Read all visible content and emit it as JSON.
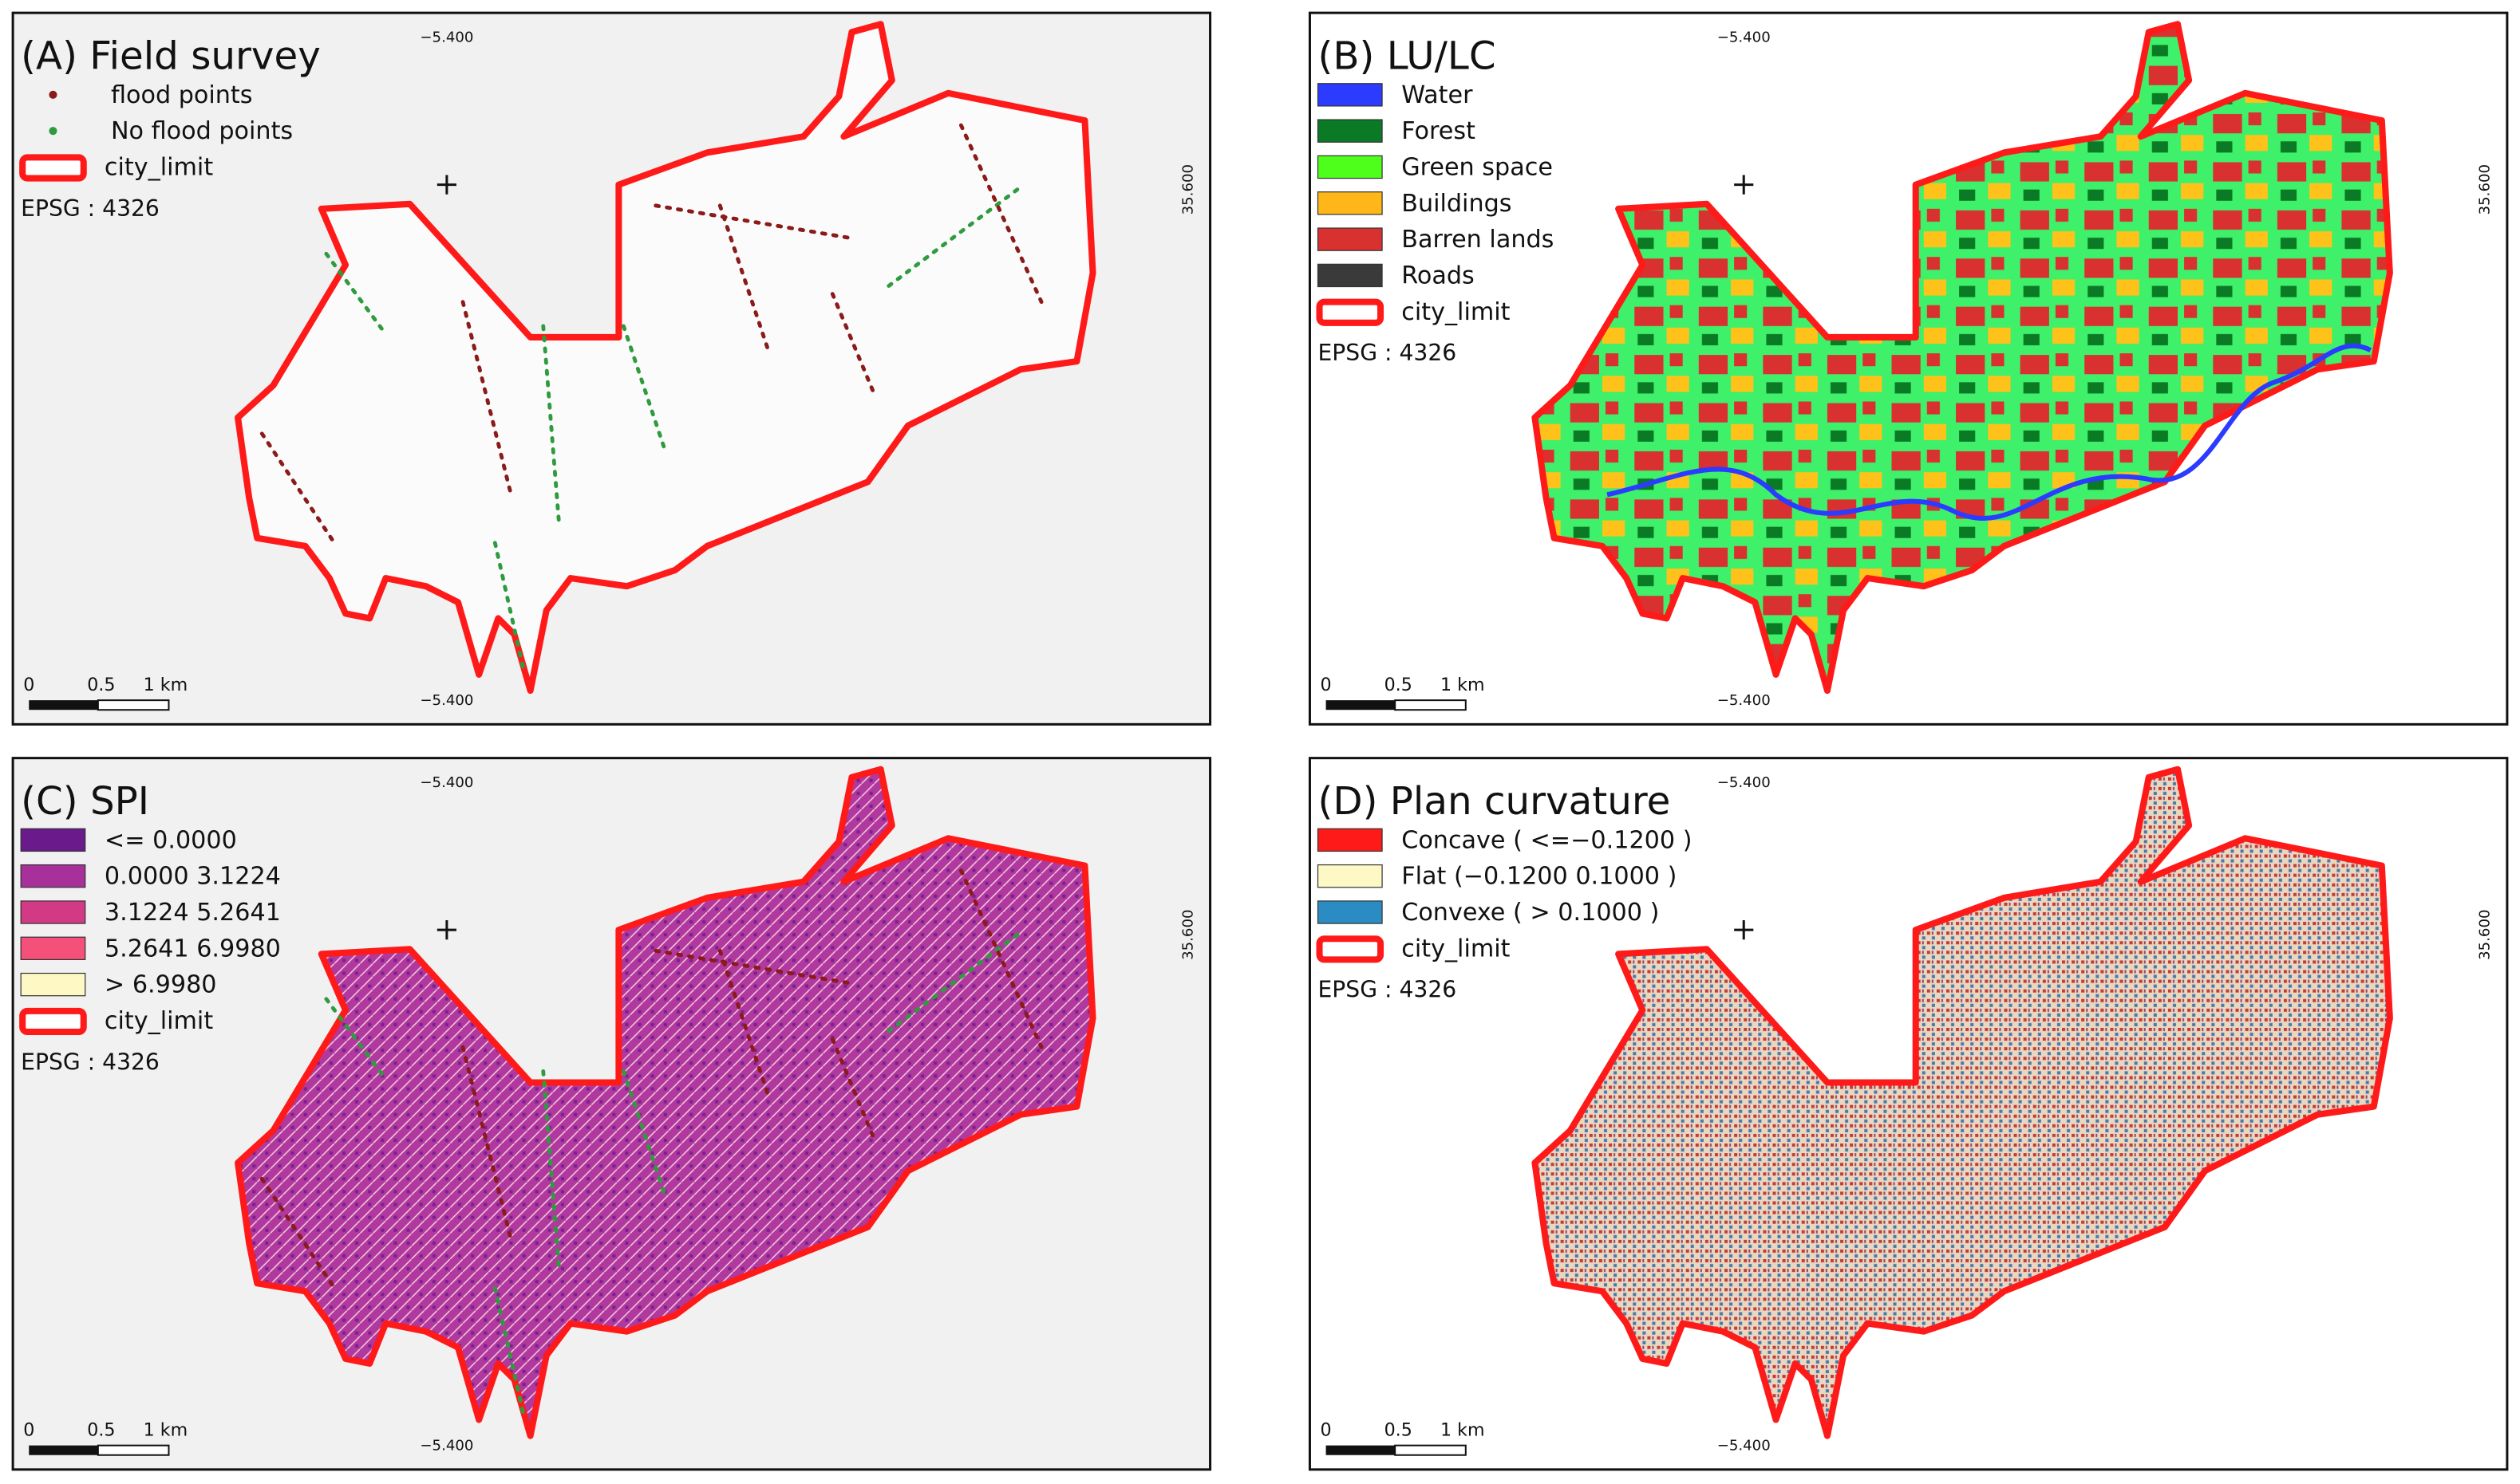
{
  "panels": [
    {
      "title": "(A) Field survey",
      "legend": [
        {
          "label": "flood points",
          "symbol": "point",
          "color": "#8b1a1a"
        },
        {
          "label": "No flood points",
          "symbol": "point",
          "color": "#2e9b3e"
        },
        {
          "label": "city_limit",
          "symbol": "outline",
          "color": "#ff1a1a"
        }
      ],
      "epsg": "EPSG : 4326",
      "scale": [
        "0",
        "0.5",
        "1 km"
      ],
      "top": "−5.400",
      "bottom": "−5.400",
      "right": "35.600"
    },
    {
      "title": "(B) LU/LC",
      "legend": [
        {
          "label": "Water",
          "symbol": "box",
          "color": "#2b3bff"
        },
        {
          "label": "Forest",
          "symbol": "box",
          "color": "#0a7a25"
        },
        {
          "label": "Green space",
          "symbol": "box",
          "color": "#4dff1a"
        },
        {
          "label": "Buildings",
          "symbol": "box",
          "color": "#ffb619"
        },
        {
          "label": "Barren lands",
          "symbol": "box",
          "color": "#d93030"
        },
        {
          "label": "Roads",
          "symbol": "box",
          "color": "#3a3a3a"
        },
        {
          "label": "city_limit",
          "symbol": "outline",
          "color": "#ff1a1a"
        }
      ],
      "epsg": "EPSG : 4326",
      "scale": [
        "0",
        "0.5",
        "1 km"
      ],
      "top": "−5.400",
      "bottom": "−5.400",
      "right": "35.600"
    },
    {
      "title": "(C) SPI",
      "legend": [
        {
          "label": "<=  0.0000",
          "symbol": "box",
          "color": "#6a1a8a"
        },
        {
          "label": " 0.0000   3.1224",
          "symbol": "box",
          "color": "#a8309a"
        },
        {
          "label": "3.1224   5.2641",
          "symbol": "box",
          "color": "#d23a86"
        },
        {
          "label": "5.2641   6.9980",
          "symbol": "box",
          "color": "#f4507a"
        },
        {
          "label": "> 6.9980",
          "symbol": "box",
          "color": "#fdf8c4"
        },
        {
          "label": "city_limit",
          "symbol": "outline",
          "color": "#ff1a1a"
        }
      ],
      "epsg": "EPSG : 4326",
      "scale": [
        "0",
        "0.5",
        "1 km"
      ],
      "top": "−5.400",
      "bottom": "−5.400",
      "right": "35.600"
    },
    {
      "title": "(D) Plan curvature",
      "legend": [
        {
          "label": "Concave ( <=−0.1200 )",
          "symbol": "box",
          "color": "#ff1a1a"
        },
        {
          "label": "Flat (−0.1200   0.1000 )",
          "symbol": "box",
          "color": "#fdf8c4"
        },
        {
          "label": "Convexe ( > 0.1000 )",
          "symbol": "box",
          "color": "#2b8cc4"
        },
        {
          "label": "city_limit",
          "symbol": "outline",
          "color": "#ff1a1a"
        }
      ],
      "epsg": "EPSG : 4326",
      "scale": [
        "0",
        "0.5",
        "1 km"
      ],
      "top": "−5.400",
      "bottom": "−5.400",
      "right": "35.600"
    }
  ]
}
